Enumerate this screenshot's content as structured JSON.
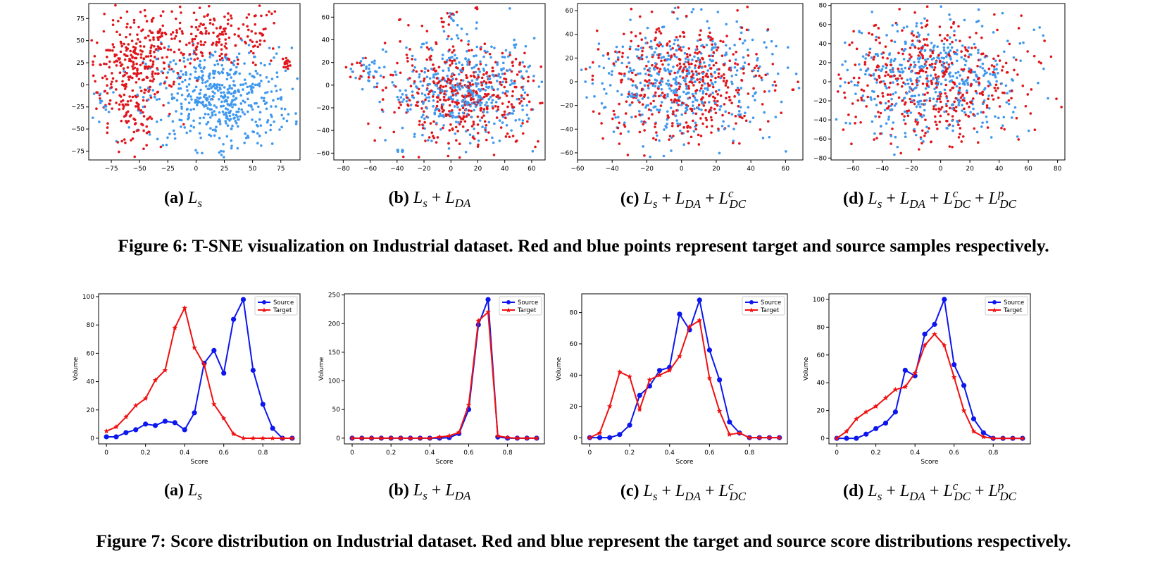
{
  "figure6": {
    "caption": "Figure 6: T-SNE visualization on Industrial dataset. Red and blue points represent target and source samples respectively.",
    "panels": [
      {
        "tag": "(a)",
        "formula": "Ls"
      },
      {
        "tag": "(b)",
        "formula": "Ls + LDA"
      },
      {
        "tag": "(c)",
        "formula": "Ls + LDA + LcDC"
      },
      {
        "tag": "(d)",
        "formula": "Ls + LDA + LcDC + LpDC"
      }
    ]
  },
  "figure7": {
    "caption": "Figure 7: Score distribution on Industrial dataset. Red and blue represent the target and source score distributions respectively.",
    "panels": [
      {
        "tag": "(a)",
        "formula": "Ls"
      },
      {
        "tag": "(b)",
        "formula": "Ls + LDA"
      },
      {
        "tag": "(c)",
        "formula": "Ls + LDA + LcDC"
      },
      {
        "tag": "(d)",
        "formula": "Ls + LDA + LcDC + LpDC"
      }
    ]
  },
  "chart_data": [
    {
      "type": "scatter",
      "panel": "fig6-a",
      "xlim": [
        -95,
        92
      ],
      "ylim": [
        -85,
        92
      ],
      "xticks": [
        -75,
        -50,
        -25,
        0,
        25,
        50,
        75
      ],
      "yticks": [
        -75,
        -50,
        -25,
        0,
        25,
        50,
        75
      ],
      "series": [
        {
          "color": "#e0161c",
          "clusters": [
            [
              -60,
              15,
              18,
              30,
              220
            ],
            [
              -35,
              40,
              22,
              22,
              120
            ],
            [
              25,
              55,
              28,
              18,
              160
            ],
            [
              -55,
              -45,
              10,
              15,
              50
            ],
            [
              80,
              25,
              2,
              3,
              15
            ]
          ]
        },
        {
          "color": "#3f98ee",
          "clusters": [
            [
              20,
              -15,
              32,
              28,
              520
            ],
            [
              -85,
              -20,
              3,
              10,
              12
            ],
            [
              22,
              -78,
              3,
              3,
              6
            ]
          ]
        }
      ]
    },
    {
      "type": "scatter",
      "panel": "fig6-b",
      "xlim": [
        -87,
        70
      ],
      "ylim": [
        -66,
        72
      ],
      "xticks": [
        -80,
        -60,
        -40,
        -20,
        0,
        20,
        40,
        60
      ],
      "yticks": [
        -60,
        -40,
        -20,
        0,
        20,
        40,
        60
      ],
      "series": [
        {
          "color": "#e0161c",
          "clusters": [
            [
              10,
              -10,
              28,
              22,
              420
            ],
            [
              -70,
              15,
              5,
              5,
              12
            ],
            [
              -2,
              60,
              3,
              5,
              10
            ],
            [
              20,
              67,
              1,
              1,
              3
            ],
            [
              -38,
              58,
              1,
              1,
              3
            ]
          ]
        },
        {
          "color": "#3f98ee",
          "clusters": [
            [
              10,
              -5,
              28,
              22,
              420
            ],
            [
              -60,
              15,
              5,
              5,
              20
            ],
            [
              -38,
              -58,
              2,
              1,
              8
            ],
            [
              0,
              60,
              3,
              4,
              6
            ]
          ]
        }
      ]
    },
    {
      "type": "scatter",
      "panel": "fig6-c",
      "xlim": [
        -60,
        70
      ],
      "ylim": [
        -66,
        66
      ],
      "xticks": [
        -60,
        -40,
        -20,
        0,
        20,
        40,
        60
      ],
      "yticks": [
        -60,
        -40,
        -20,
        0,
        20,
        40,
        60
      ],
      "series": [
        {
          "color": "#e0161c",
          "clusters": [
            [
              0,
              0,
              26,
              26,
              450
            ]
          ]
        },
        {
          "color": "#3f98ee",
          "clusters": [
            [
              0,
              0,
              26,
              26,
              450
            ]
          ]
        }
      ]
    },
    {
      "type": "scatter",
      "panel": "fig6-d",
      "xlim": [
        -75,
        85
      ],
      "ylim": [
        -82,
        82
      ],
      "xticks": [
        -60,
        -40,
        -20,
        0,
        20,
        40,
        60,
        80
      ],
      "yticks": [
        -80,
        -60,
        -40,
        -20,
        0,
        20,
        40,
        60,
        80
      ],
      "series": [
        {
          "color": "#e0161c",
          "clusters": [
            [
              -5,
              0,
              30,
              32,
              450
            ]
          ]
        },
        {
          "color": "#3f98ee",
          "clusters": [
            [
              -5,
              5,
              30,
              32,
              450
            ]
          ]
        }
      ]
    },
    {
      "type": "line",
      "panel": "fig7-a",
      "xlabel": "Score",
      "ylabel": "Volume",
      "xlim": [
        -0.04,
        0.99
      ],
      "ylim": [
        -4,
        102
      ],
      "yticks": [
        0,
        20,
        40,
        60,
        80,
        100
      ],
      "x": [
        0,
        0.05,
        0.1,
        0.15,
        0.2,
        0.25,
        0.3,
        0.35,
        0.4,
        0.45,
        0.5,
        0.55,
        0.6,
        0.65,
        0.7,
        0.75,
        0.8,
        0.85,
        0.9,
        0.95
      ],
      "series": [
        {
          "name": "Source",
          "color": "#0c17ee",
          "marker": "circle",
          "values": [
            1,
            1,
            4,
            6,
            10,
            9,
            12,
            11,
            6,
            18,
            53,
            62,
            46,
            84,
            98,
            48,
            24,
            7,
            0,
            0
          ]
        },
        {
          "name": "Target",
          "color": "#f01010",
          "marker": "star",
          "values": [
            5,
            8,
            15,
            23,
            28,
            41,
            48,
            78,
            92,
            64,
            52,
            24,
            14,
            3,
            0,
            0,
            0,
            0,
            0,
            0
          ]
        }
      ]
    },
    {
      "type": "line",
      "panel": "fig7-b",
      "xlabel": "Score",
      "ylabel": "Volume",
      "xlim": [
        -0.04,
        0.99
      ],
      "ylim": [
        -10,
        252
      ],
      "yticks": [
        0,
        50,
        100,
        150,
        200,
        250
      ],
      "x": [
        0,
        0.05,
        0.1,
        0.15,
        0.2,
        0.25,
        0.3,
        0.35,
        0.4,
        0.45,
        0.5,
        0.55,
        0.6,
        0.65,
        0.7,
        0.75,
        0.8,
        0.85,
        0.9,
        0.95
      ],
      "series": [
        {
          "name": "Source",
          "color": "#0c17ee",
          "marker": "circle",
          "values": [
            0,
            0,
            0,
            0,
            0,
            0,
            0,
            0,
            0,
            0,
            1,
            8,
            50,
            198,
            242,
            2,
            0,
            0,
            0,
            0
          ]
        },
        {
          "name": "Target",
          "color": "#f01010",
          "marker": "star",
          "values": [
            0,
            0,
            0,
            0,
            0,
            0,
            0,
            0,
            0,
            2,
            4,
            10,
            58,
            205,
            220,
            4,
            1,
            0,
            0,
            0
          ]
        }
      ]
    },
    {
      "type": "line",
      "panel": "fig7-c",
      "xlabel": "Score",
      "ylabel": "Volume",
      "xlim": [
        -0.04,
        0.99
      ],
      "ylim": [
        -4,
        92
      ],
      "yticks": [
        0,
        20,
        40,
        60,
        80
      ],
      "x": [
        0,
        0.05,
        0.1,
        0.15,
        0.2,
        0.25,
        0.3,
        0.35,
        0.4,
        0.45,
        0.5,
        0.55,
        0.6,
        0.65,
        0.7,
        0.75,
        0.8,
        0.85,
        0.9,
        0.95
      ],
      "series": [
        {
          "name": "Source",
          "color": "#0c17ee",
          "marker": "circle",
          "values": [
            0,
            0,
            0,
            2,
            8,
            27,
            33,
            43,
            45,
            79,
            69,
            88,
            56,
            37,
            10,
            3,
            0,
            0,
            0,
            0
          ]
        },
        {
          "name": "Target",
          "color": "#f01010",
          "marker": "star",
          "values": [
            0,
            3,
            20,
            42,
            39,
            18,
            37,
            40,
            43,
            52,
            71,
            75,
            38,
            17,
            2,
            3,
            0,
            0,
            0,
            0
          ]
        }
      ]
    },
    {
      "type": "line",
      "panel": "fig7-d",
      "xlabel": "Score",
      "ylabel": "Volume",
      "xlim": [
        -0.04,
        0.99
      ],
      "ylim": [
        -4,
        104
      ],
      "yticks": [
        0,
        20,
        40,
        60,
        80,
        100
      ],
      "x": [
        0,
        0.05,
        0.1,
        0.15,
        0.2,
        0.25,
        0.3,
        0.35,
        0.4,
        0.45,
        0.5,
        0.55,
        0.6,
        0.65,
        0.7,
        0.75,
        0.8,
        0.85,
        0.9,
        0.95
      ],
      "series": [
        {
          "name": "Source",
          "color": "#0c17ee",
          "marker": "circle",
          "values": [
            0,
            0,
            0,
            3,
            7,
            11,
            19,
            49,
            45,
            75,
            82,
            100,
            53,
            38,
            14,
            4,
            0,
            0,
            0,
            0
          ]
        },
        {
          "name": "Target",
          "color": "#f01010",
          "marker": "star",
          "values": [
            0,
            5,
            14,
            19,
            23,
            29,
            35,
            37,
            47,
            67,
            75,
            67,
            44,
            20,
            5,
            1,
            0,
            0,
            0,
            0
          ]
        }
      ]
    }
  ]
}
